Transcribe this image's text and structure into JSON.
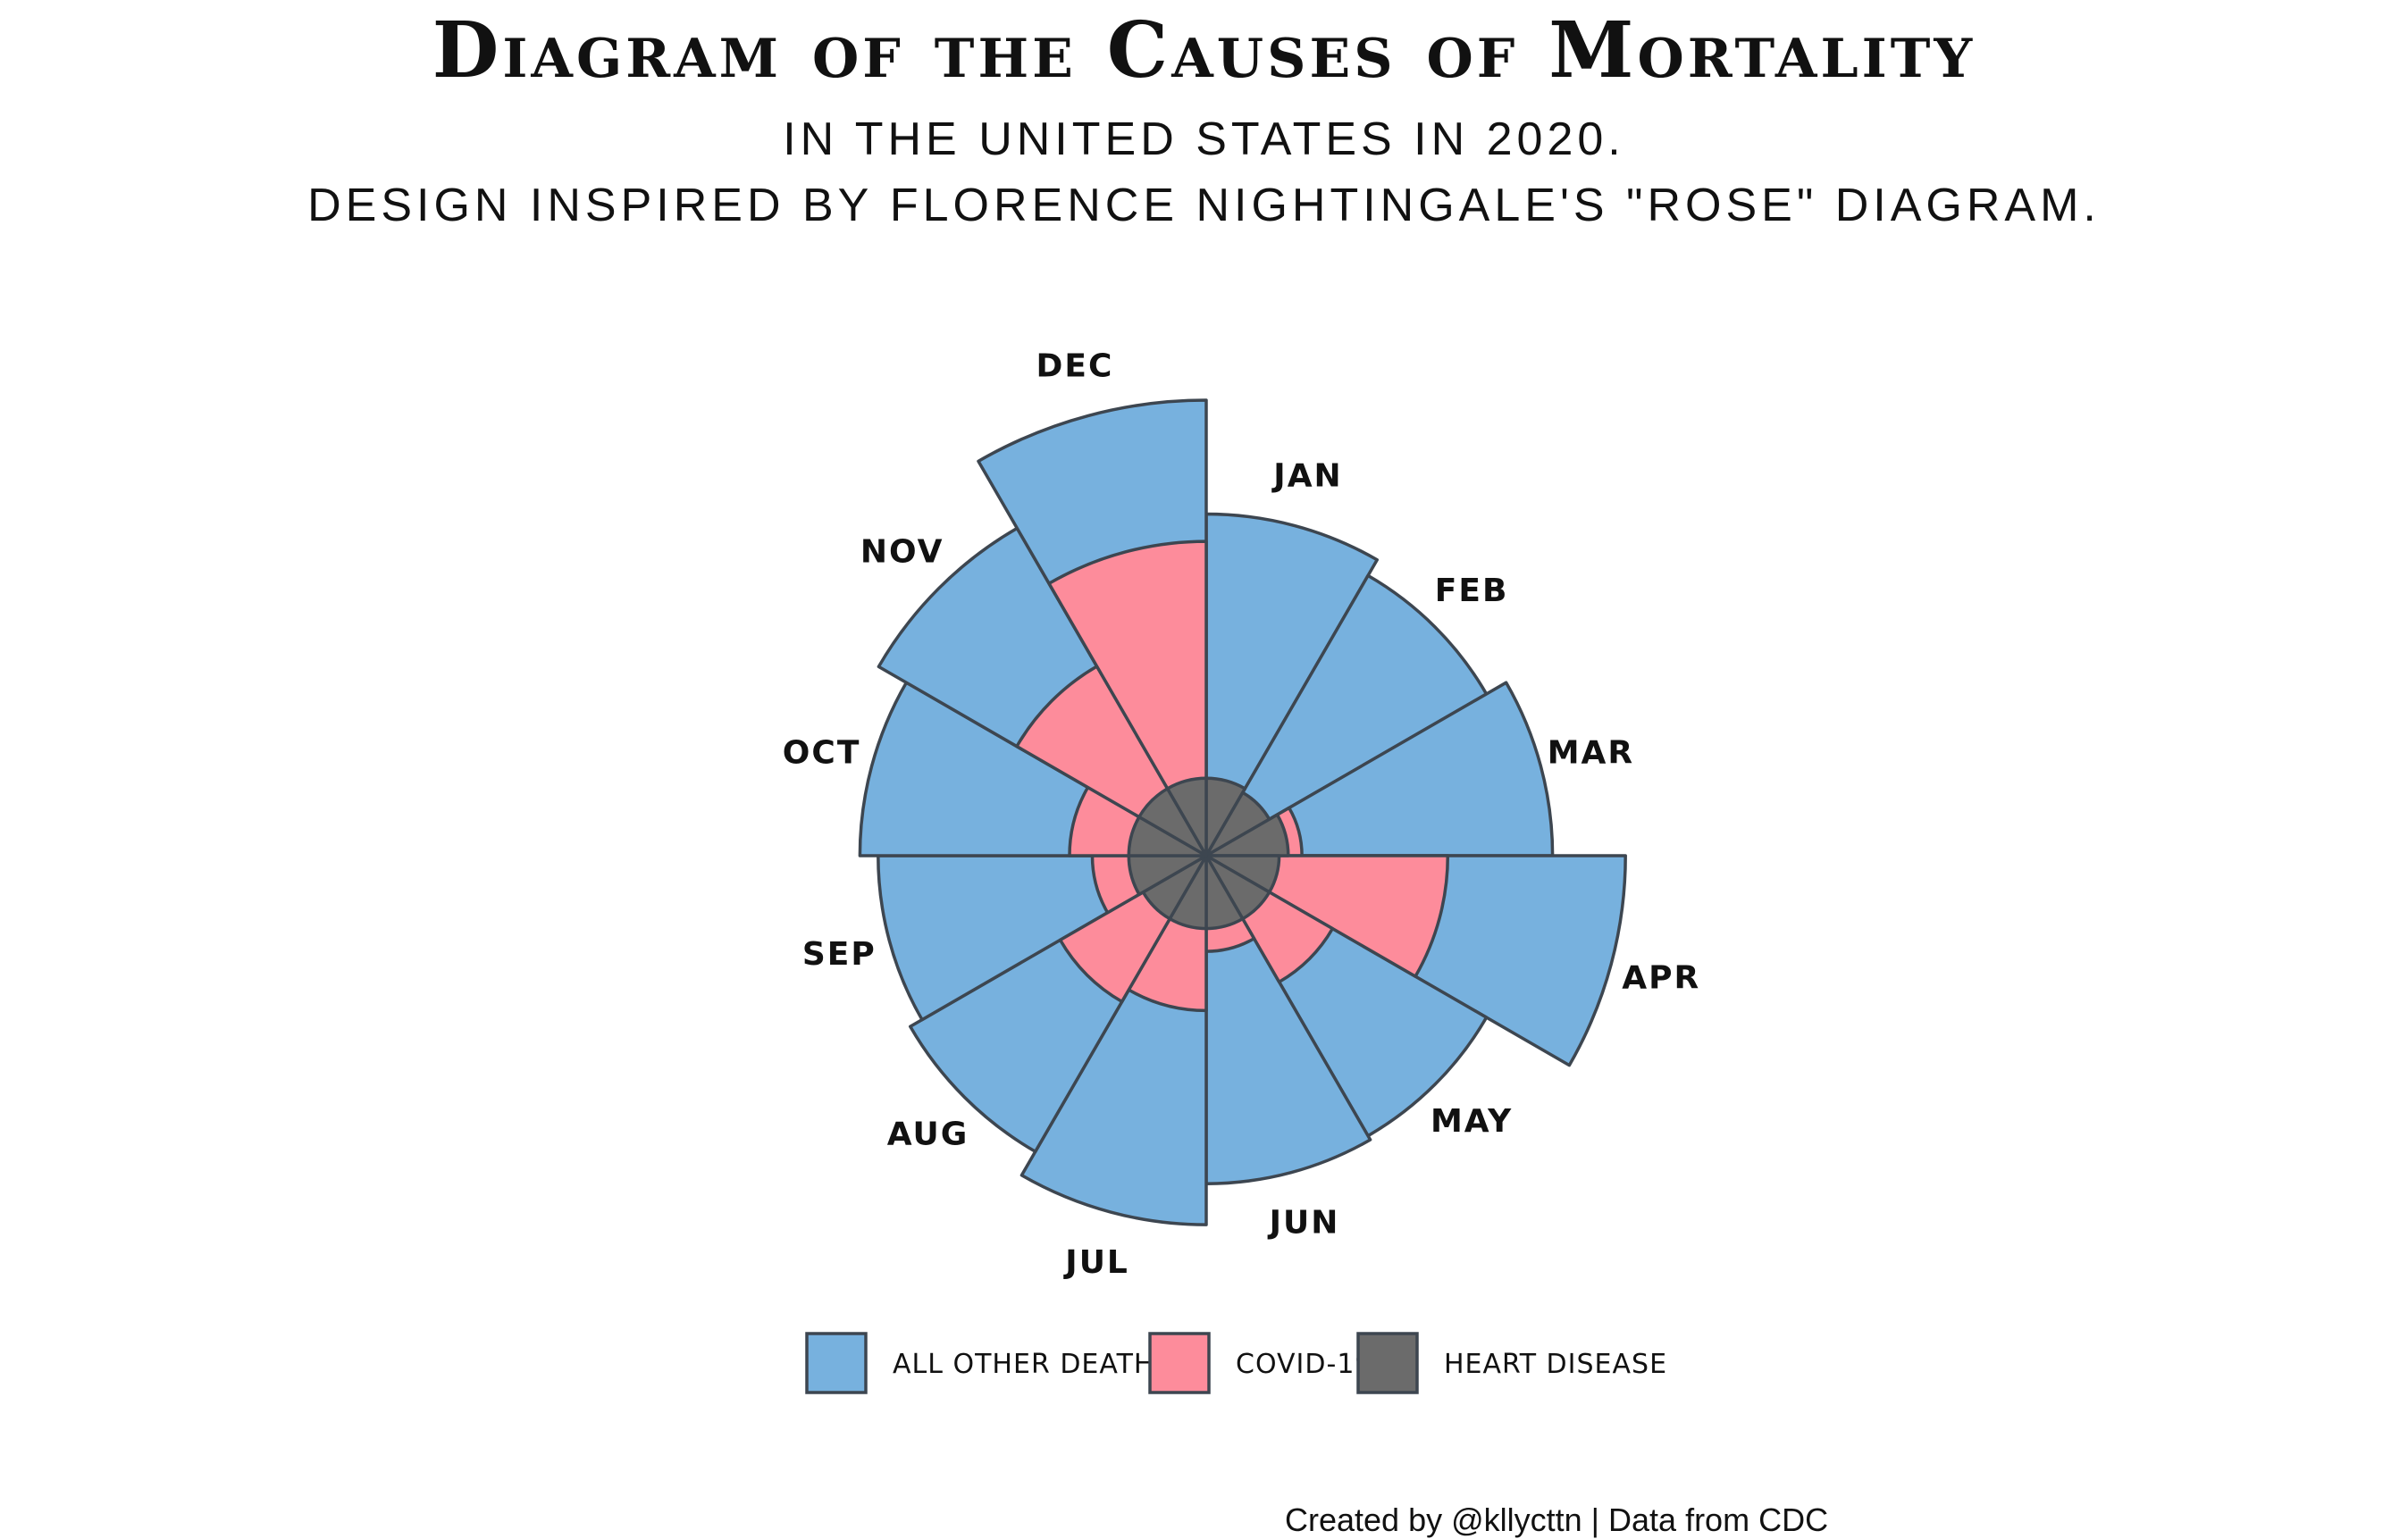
{
  "header": {
    "title": "Diagram of the Causes of Mortality",
    "subtitle_line1": "IN THE UNITED STATES IN 2020.",
    "subtitle_line2": "DESIGN INSPIRED BY FLORENCE NIGHTINGALE'S \"ROSE\" DIAGRAM."
  },
  "caption": "Created by @kllycttn | Data from CDC",
  "chart_data": {
    "type": "rose",
    "categories": [
      "JAN",
      "FEB",
      "MAR",
      "APR",
      "MAY",
      "JUN",
      "JUL",
      "AUG",
      "SEP",
      "OCT",
      "NOV",
      "DEC"
    ],
    "series": [
      {
        "name": "ALL OTHER DEATHS",
        "color": "#77b1de",
        "values": [
          0.75,
          0.71,
          0.76,
          0.92,
          0.71,
          0.72,
          0.81,
          0.75,
          0.72,
          0.76,
          0.83,
          1.0
        ]
      },
      {
        "name": "COVID-19",
        "color": "#fd8c9b",
        "values": [
          0.14,
          0.15,
          0.21,
          0.53,
          0.32,
          0.21,
          0.34,
          0.37,
          0.25,
          0.3,
          0.48,
          0.69
        ]
      },
      {
        "name": "HEART DISEASE",
        "color": "#6b6b6b",
        "values": [
          0.17,
          0.16,
          0.18,
          0.16,
          0.16,
          0.16,
          0.16,
          0.16,
          0.17,
          0.17,
          0.17,
          0.17
        ]
      }
    ],
    "legend_position": "bottom",
    "stroke_color": "#3d4650"
  }
}
